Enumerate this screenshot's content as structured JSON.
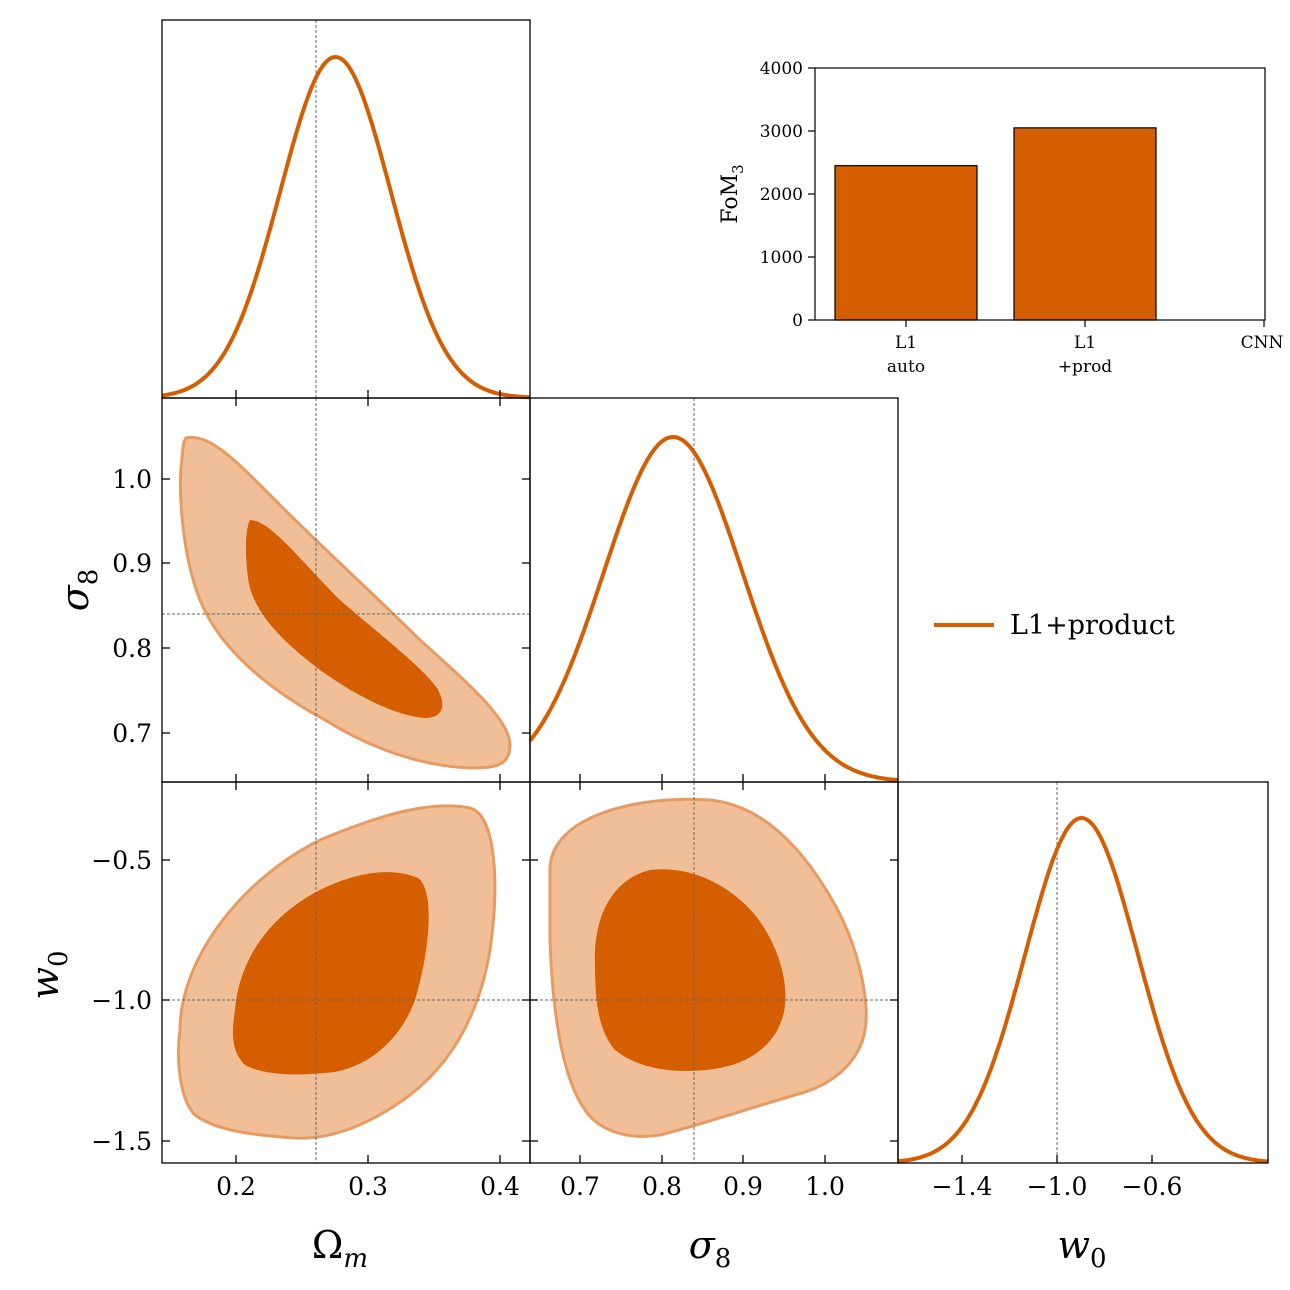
{
  "colors": {
    "accent": "#d45e00",
    "contour_outer": "#f0bf98",
    "contour_outer_edge": "#e69b63",
    "reference_line": "#666666"
  },
  "legend": {
    "label": "L1+product"
  },
  "axes": {
    "omega_m_label": "Ω",
    "omega_m_sub": "m",
    "sigma8_label": "σ",
    "sigma8_sub": "8",
    "w0_label": "w",
    "w0_sub": "0"
  },
  "chart_data": [
    {
      "type": "line",
      "panel": "Omega_m 1D posterior",
      "x_range": [
        0.14,
        0.42
      ],
      "xticks": [
        "0.2",
        "0.3",
        "0.4"
      ],
      "peak": 0.272,
      "sigma": 0.042,
      "reference": 0.26
    },
    {
      "type": "line",
      "panel": "sigma_8 1D posterior",
      "x_range": [
        0.64,
        1.09
      ],
      "xticks": [
        "0.7",
        "0.8",
        "0.9",
        "1.0"
      ],
      "peak": 0.815,
      "sigma": 0.085,
      "reference": 0.84
    },
    {
      "type": "line",
      "panel": "w_0 1D posterior",
      "x_range": [
        -1.55,
        -0.3
      ],
      "xticks": [
        "−1.4",
        "−1.0",
        "−0.6"
      ],
      "peak": -0.93,
      "sigma": 0.19,
      "reference": -1.0
    },
    {
      "type": "contour",
      "panel": "sigma_8 vs Omega_m",
      "x_range": [
        0.14,
        0.42
      ],
      "y_range": [
        0.64,
        1.09
      ],
      "yticks": [
        "0.7",
        "0.8",
        "0.9",
        "1.0"
      ],
      "reference": {
        "x": 0.26,
        "y": 0.84
      }
    },
    {
      "type": "contour",
      "panel": "w_0 vs Omega_m",
      "x_range": [
        0.14,
        0.42
      ],
      "y_range": [
        -1.6,
        -0.27
      ],
      "yticks": [
        "−0.5",
        "−1.0",
        "−1.5"
      ],
      "reference": {
        "x": 0.26,
        "y": -1.0
      }
    },
    {
      "type": "contour",
      "panel": "w_0 vs sigma_8",
      "x_range": [
        0.64,
        1.09
      ],
      "y_range": [
        -1.6,
        -0.27
      ],
      "reference": {
        "x": 0.84,
        "y": -1.0
      }
    },
    {
      "type": "bar",
      "panel": "inset FoM",
      "ylabel": "FoM",
      "ylabel_sub": "3",
      "categories": [
        [
          "L1",
          "auto"
        ],
        [
          "L1",
          "+prod"
        ],
        [
          "CNN"
        ]
      ],
      "values": [
        2450,
        3050,
        0
      ],
      "ylim": [
        0,
        4000
      ],
      "yticks": [
        "0",
        "1000",
        "2000",
        "3000",
        "4000"
      ]
    }
  ]
}
